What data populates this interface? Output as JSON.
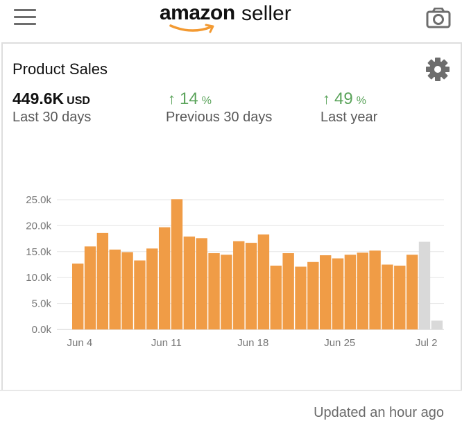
{
  "header": {
    "logo_text_bold": "amazon",
    "logo_text_light": "seller",
    "menu_icon": "hamburger-menu-icon",
    "camera_icon": "camera-icon"
  },
  "card": {
    "title": "Product Sales",
    "settings_icon": "gear-icon",
    "total": "449.6K",
    "currency": "USD",
    "total_label": "Last 30 days",
    "prev_change": "14",
    "prev_unit": "%",
    "prev_label": "Previous 30 days",
    "year_change": "49",
    "year_unit": "%",
    "year_label": "Last year",
    "updated": "Updated an hour ago"
  },
  "colors": {
    "bar": "#f09c46",
    "bar_projected": "#d9d9d9",
    "positive": "#5aa35a"
  },
  "chart_data": {
    "type": "bar",
    "title": "",
    "xlabel": "",
    "ylabel": "",
    "ylim": [
      0,
      25000
    ],
    "y_ticks": [
      "0.0k",
      "5.0k",
      "10.0k",
      "15.0k",
      "20.0k",
      "25.0k"
    ],
    "x_tick_labels": [
      "Jun 4",
      "Jun 11",
      "Jun 18",
      "Jun 25",
      "Jul 2"
    ],
    "values": [
      12700,
      16000,
      18600,
      15400,
      14900,
      13300,
      15600,
      19700,
      25100,
      17900,
      17600,
      14700,
      14400,
      17000,
      16700,
      18300,
      12300,
      14700,
      12100,
      13000,
      14300,
      13700,
      14400,
      14800,
      15200,
      12500,
      12300,
      14400,
      16900,
      1700
    ],
    "projected_from_index": 28,
    "grid": true
  }
}
